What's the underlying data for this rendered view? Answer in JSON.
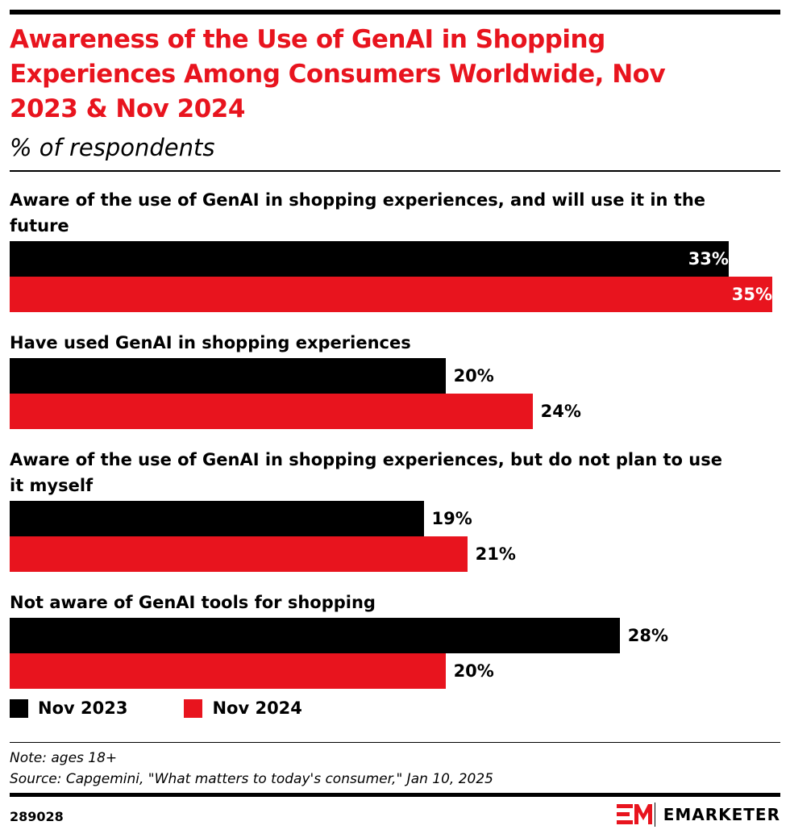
{
  "chart_data": {
    "type": "bar",
    "orientation": "horizontal",
    "title": "Awareness of the Use of GenAI in Shopping Experiences Among Consumers Worldwide, Nov 2023 & Nov 2024",
    "subtitle": "% of respondents",
    "categories": [
      "Aware of the use of GenAI in shopping experiences, and will use it in the future",
      "Have used GenAI in shopping experiences",
      "Aware of the use of GenAI in shopping experiences, but do not plan to use it myself",
      "Not aware of GenAI tools for shopping"
    ],
    "series": [
      {
        "name": "Nov 2023",
        "color": "#000000",
        "values": [
          33,
          20,
          19,
          28
        ],
        "value_labels": [
          "33%",
          "20%",
          "19%",
          "28%"
        ]
      },
      {
        "name": "Nov 2024",
        "color": "#e8141e",
        "values": [
          35,
          24,
          21,
          20
        ],
        "value_labels": [
          "35%",
          "24%",
          "21%",
          "20%"
        ]
      }
    ],
    "legend": "bottom-left",
    "note": "Note: ages 18+",
    "source": "Source: Capgemini, \"What matters to today's consumer,\" Jan 10, 2025",
    "chart_id": "289028",
    "brand": "EMARKETER"
  }
}
